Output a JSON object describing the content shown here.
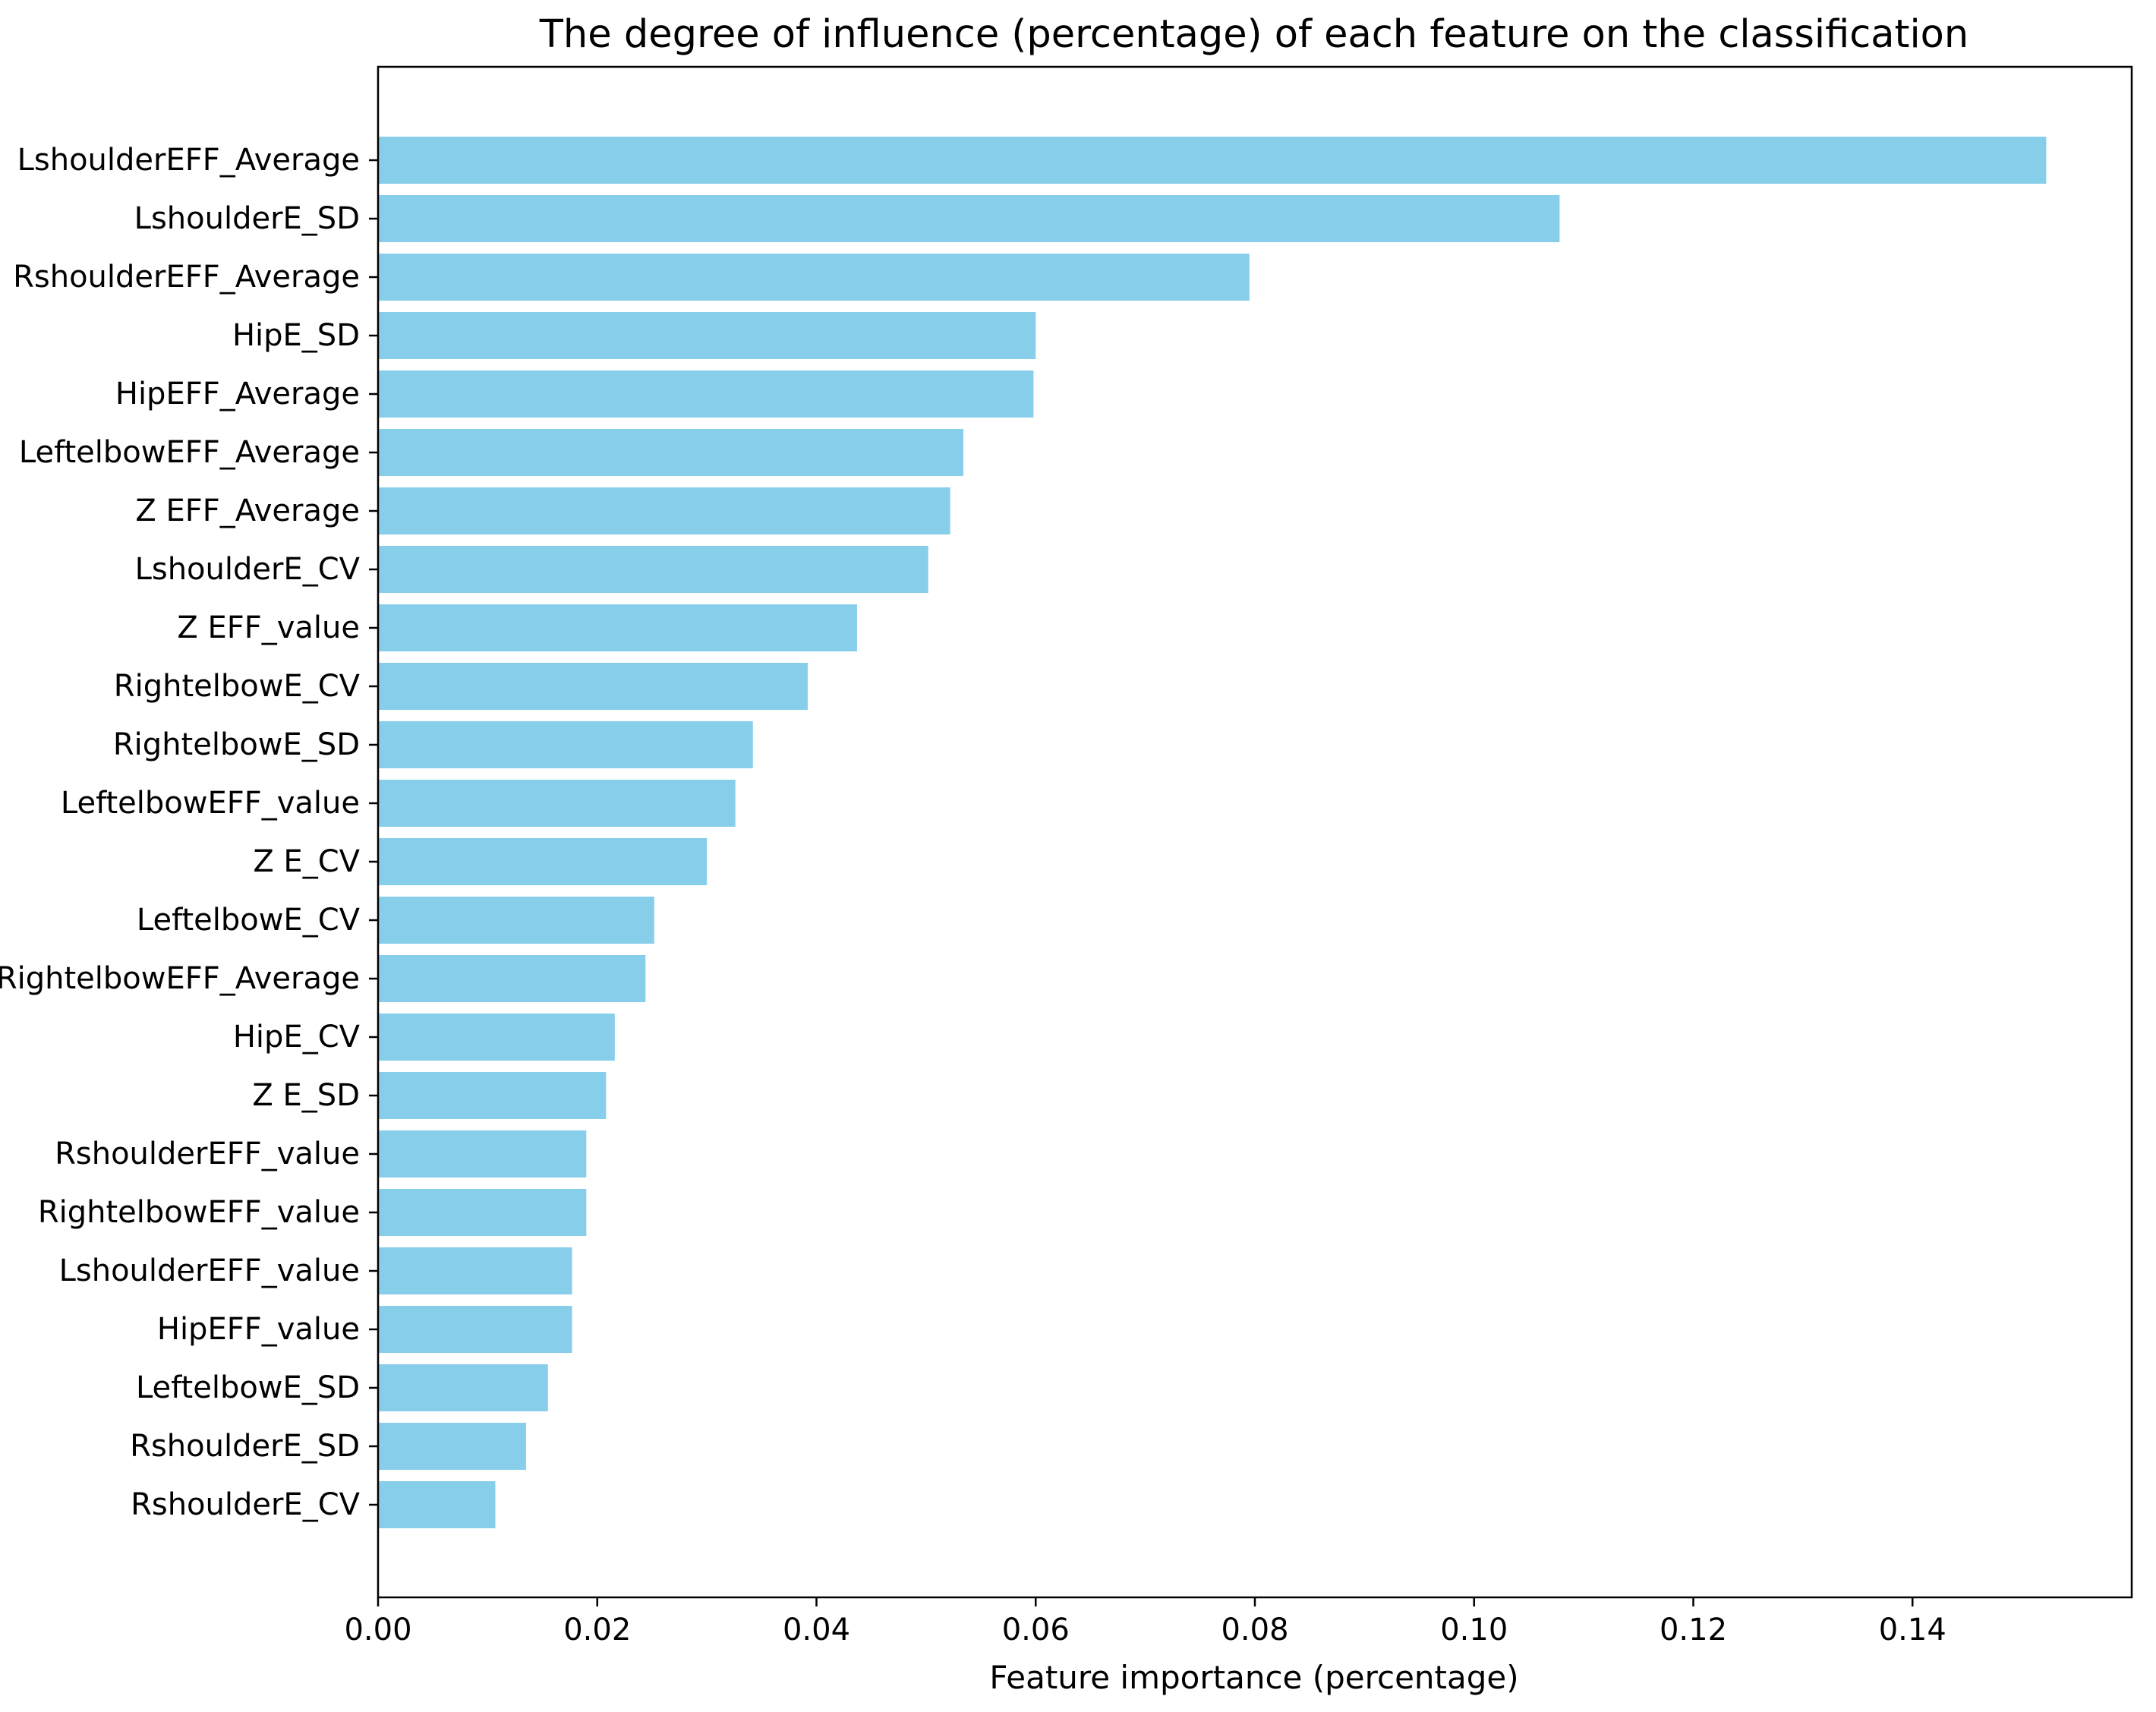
{
  "chart_data": {
    "type": "bar",
    "orientation": "horizontal",
    "title": "The degree of influence (percentage) of each feature on the classification",
    "xlabel": "Feature importance (percentage)",
    "ylabel": "",
    "categories": [
      "LshoulderEFF_Average",
      "LshoulderE_SD",
      "RshoulderEFF_Average",
      "HipE_SD",
      "HipEFF_Average",
      "LeftelbowEFF_Average",
      "Z EFF_Average",
      "LshoulderE_CV",
      "Z EFF_value",
      "RightelbowE_CV",
      "RightelbowE_SD",
      "LeftelbowEFF_value",
      "Z E_CV",
      "LeftelbowE_CV",
      "RightelbowEFF_Average",
      "HipE_CV",
      "Z E_SD",
      "RshoulderEFF_value",
      "RightelbowEFF_value",
      "LshoulderEFF_value",
      "HipEFF_value",
      "LeftelbowE_SD",
      "RshoulderE_SD",
      "RshoulderE_CV"
    ],
    "values": [
      0.1522,
      0.1078,
      0.0795,
      0.06,
      0.0598,
      0.0534,
      0.0522,
      0.0502,
      0.0437,
      0.0392,
      0.0342,
      0.0326,
      0.03,
      0.0252,
      0.0244,
      0.0216,
      0.0208,
      0.019,
      0.019,
      0.0177,
      0.0177,
      0.0155,
      0.0135,
      0.0107
    ],
    "xlim": [
      0,
      0.16
    ],
    "xticks": [
      "0.00",
      "0.02",
      "0.04",
      "0.06",
      "0.08",
      "0.10",
      "0.12",
      "0.14"
    ],
    "grid": false,
    "bar_color": "#87CEEB"
  }
}
